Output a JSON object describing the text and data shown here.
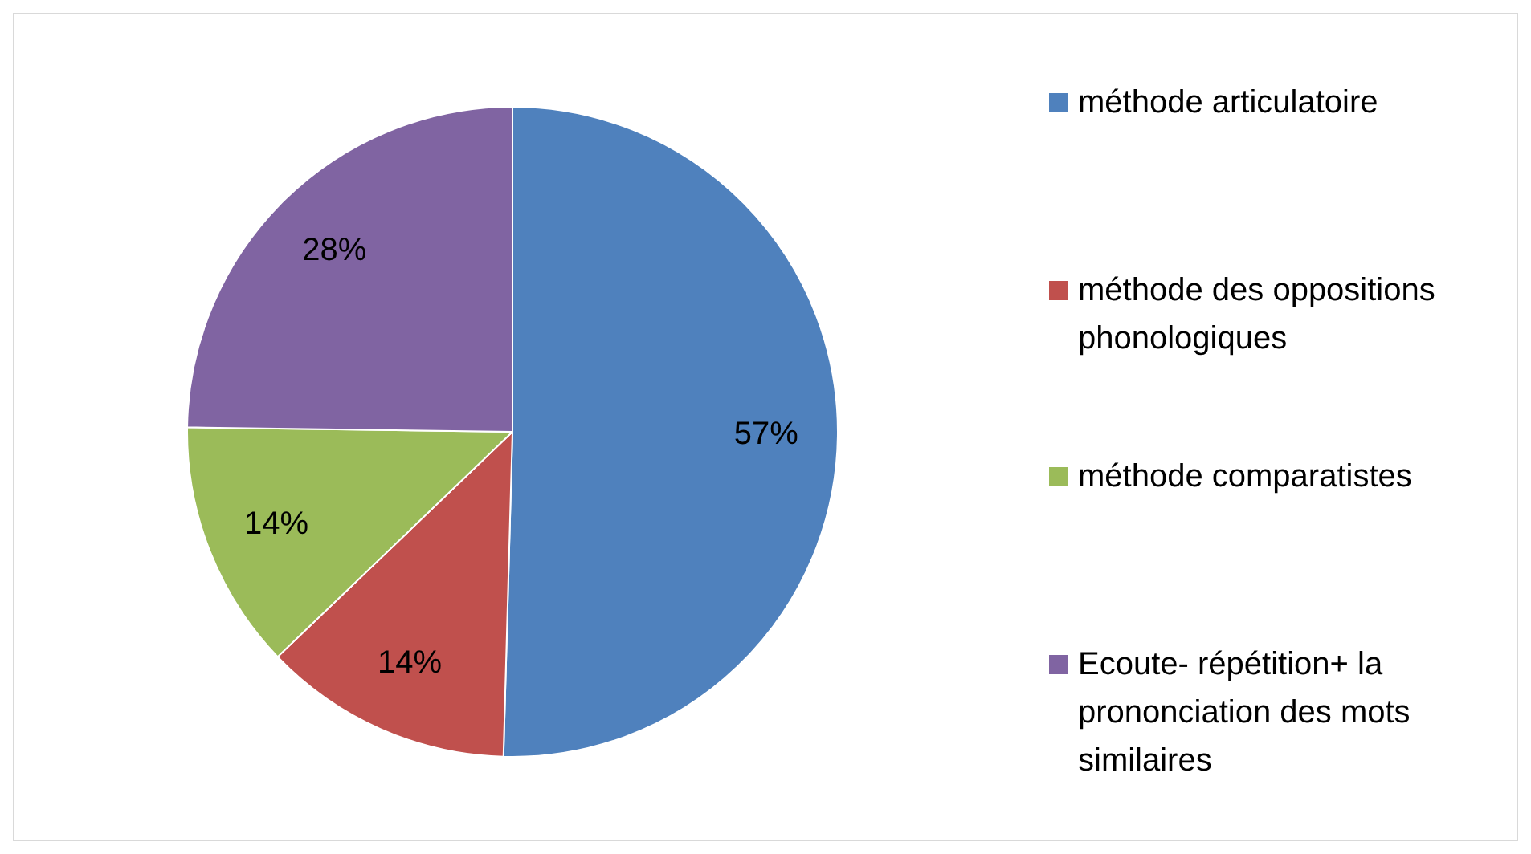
{
  "chart_data": {
    "type": "pie",
    "categories": [
      "méthode articulatoire",
      "méthode des oppositions phonologiques",
      "méthode comparatistes",
      "Ecoute- répétition+ la prononciation des mots similaires"
    ],
    "values": [
      57,
      14,
      14,
      28
    ],
    "colors": [
      "#4f81bd",
      "#c0504d",
      "#9bbb59",
      "#8064a2"
    ],
    "value_labels": [
      "57%",
      "14%",
      "14%",
      "28%"
    ],
    "legend": "right"
  }
}
